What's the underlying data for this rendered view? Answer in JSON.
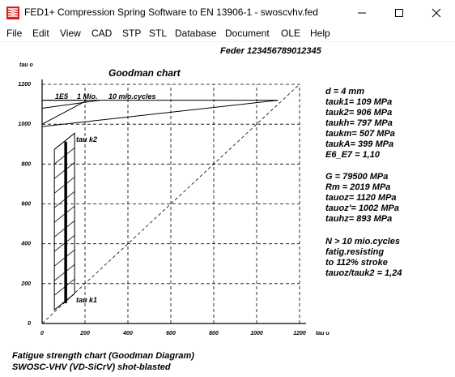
{
  "window": {
    "title": "FED1+  Compression Spring Software to EN 13906-1  -  swoscvhv.fed",
    "minimize_icon": "minimize-icon",
    "maximize_icon": "maximize-icon",
    "close_icon": "close-icon"
  },
  "menu": [
    "File",
    "Edit",
    "View",
    "CAD",
    "STP",
    "STL",
    "Database",
    "Document",
    "OLE",
    "Help"
  ],
  "header": {
    "feder": "Feder  123456789012345"
  },
  "chart": {
    "title": "Goodman chart",
    "y_axis_label": "tau o",
    "x_axis_label": "tau u",
    "x_ticks": [
      "0",
      "200",
      "400",
      "600",
      "800",
      "1000",
      "1200"
    ],
    "y_ticks": [
      "0",
      "200",
      "400",
      "600",
      "800",
      "1000",
      "1200"
    ],
    "cycle_labels": {
      "e5": "1E5",
      "mio1": "1 Mio.",
      "mio10": "10 mio.cycles"
    },
    "tauk2_label": "tau k2",
    "tauk1_label": "tau k1"
  },
  "chart_data": {
    "type": "line",
    "title": "Goodman chart",
    "xlabel": "tau u",
    "ylabel": "tau o",
    "xlim": [
      0,
      1200
    ],
    "ylim": [
      0,
      1200
    ],
    "grid": true,
    "x_ticks": [
      0,
      200,
      400,
      600,
      800,
      1000,
      1200
    ],
    "y_ticks": [
      0,
      200,
      400,
      600,
      800,
      1000,
      1200
    ],
    "series": [
      {
        "name": "1E5",
        "x": [
          0,
          185
        ],
        "y": [
          1120,
          1120
        ]
      },
      {
        "name": "1 Mio.",
        "x": [
          0,
          270
        ],
        "y": [
          1080,
          1120
        ]
      },
      {
        "name": "10 mio.cycles",
        "x": [
          0,
          1100
        ],
        "y": [
          988,
          1120
        ]
      },
      {
        "name": "tau k2",
        "x": [
          110
        ],
        "y": [
          906
        ]
      },
      {
        "name": "tau k1",
        "x": [
          110
        ],
        "y": [
          109
        ]
      }
    ]
  },
  "info": {
    "block1": [
      "d  = 4 mm",
      "tauk1=  109 MPa",
      "tauk2=  906 MPa",
      "taukh=  797 MPa",
      "taukm=  507 MPa",
      "taukA=  399 MPa",
      "E6_E7 = 1,10"
    ],
    "block2": [
      "G =  79500 MPa",
      "Rm =  2019 MPa",
      "tauoz= 1120 MPa",
      "tauoz'= 1002 MPa",
      "tauhz=  893 MPa"
    ],
    "block3": [
      "N > 10 mio.cycles",
      "fatig.resisting",
      "to 112% stroke",
      "tauoz/tauk2 = 1,24"
    ]
  },
  "footer": {
    "line1": "Fatigue strength chart (Goodman Diagram)",
    "line2": "SWOSC-VHV (VD-SiCrV) shot-blasted"
  },
  "colors": {
    "icon_red": "#d42020",
    "icon_white": "#ffffff",
    "text": "#000000",
    "menu_border": "#f0f0f0"
  }
}
